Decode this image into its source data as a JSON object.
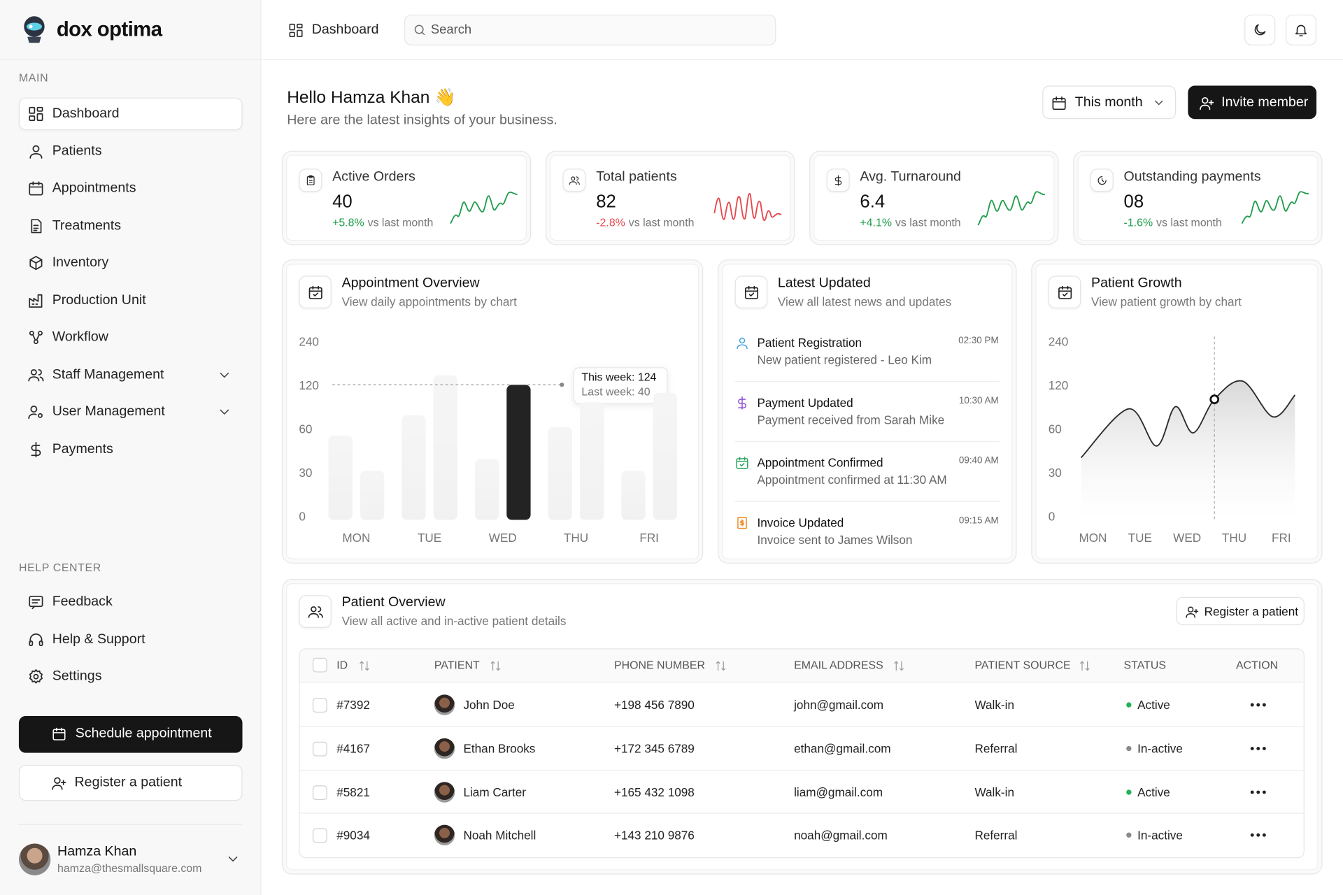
{
  "brand": "dox optima",
  "topbar": {
    "breadcrumb": "Dashboard",
    "search_placeholder": "Search"
  },
  "sidebar": {
    "main_label": "MAIN",
    "main_items": [
      "Dashboard",
      "Patients",
      "Appointments",
      "Treatments",
      "Inventory",
      "Production Unit",
      "Workflow",
      "Staff Management",
      "User Management",
      "Payments"
    ],
    "help_label": "HELP CENTER",
    "help_items": [
      "Feedback",
      "Help & Support",
      "Settings"
    ],
    "schedule_button": "Schedule appointment",
    "register_button": "Register a patient",
    "user": {
      "name": "Hamza Khan",
      "email": "hamza@thesmallsquare.com"
    }
  },
  "header": {
    "greeting": "Hello Hamza Khan 👋",
    "subtitle": "Here are the latest insights of your business.",
    "period": "This month",
    "invite": "Invite member"
  },
  "stats": [
    {
      "label": "Active Orders",
      "value": "40",
      "change": "+5.8%",
      "note": "vs last month",
      "color": "#1f9d4c"
    },
    {
      "label": "Total patients",
      "value": "82",
      "change": "-2.8%",
      "note": "vs last month",
      "color": "#e5484d"
    },
    {
      "label": "Avg. Turnaround",
      "value": "6.4",
      "change": "+4.1%",
      "note": "vs last month",
      "color": "#1f9d4c"
    },
    {
      "label": "Outstanding payments",
      "value": "08",
      "change": "-1.6%",
      "note": "vs last month",
      "color": "#1f9d4c"
    }
  ],
  "appointment_overview": {
    "title": "Appointment Overview",
    "subtitle": "View daily appointments by chart",
    "chart": {
      "type": "bar",
      "categories": [
        "MON",
        "TUE",
        "WED",
        "THU",
        "FRI"
      ],
      "series": [
        {
          "color": "#ececec",
          "values": [
            56,
            80,
            40,
            64,
            32
          ]
        },
        {
          "color": "#ececec",
          "values": [
            32,
            150,
            124,
            98,
            111
          ]
        }
      ],
      "highlight": {
        "series": 1,
        "index": 2,
        "color": "#232323"
      },
      "tooltip": [
        "This week: 124",
        "Last week: 40"
      ],
      "ylim": [
        0,
        240
      ],
      "yticks": [
        0,
        30,
        60,
        120,
        240
      ]
    }
  },
  "latest_updated": {
    "title": "Latest Updated",
    "subtitle": "View all latest news and updates",
    "items": [
      {
        "title": "Patient Registration",
        "description": "New patient registered - Leo Kim",
        "time": "02:30 PM",
        "color": "#3aa0e0"
      },
      {
        "title": "Payment Updated",
        "description": "Payment received from Sarah Mike",
        "time": "10:30 AM",
        "color": "#8b4fd8"
      },
      {
        "title": "Appointment Confirmed",
        "description": "Appointment confirmed at 11:30 AM",
        "time": "09:40 AM",
        "color": "#22a35a"
      },
      {
        "title": "Invoice Updated",
        "description": "Invoice sent to James Wilson",
        "time": "09:15 AM",
        "color": "#f08a24"
      }
    ]
  },
  "patient_growth": {
    "title": "Patient Growth",
    "subtitle": "View patient growth by chart",
    "chart": {
      "type": "line",
      "categories": [
        "MON",
        "TUE",
        "WED",
        "THU",
        "FRI"
      ],
      "x": [
        -0.25,
        0.76,
        1.35,
        1.75,
        2.13,
        2.58,
        3.18,
        3.82,
        4.29
      ],
      "values": [
        41,
        89,
        49,
        92,
        58,
        102,
        134,
        78,
        108
      ],
      "marker": 5,
      "color": "#2a2a2a",
      "ylim": [
        0,
        240
      ],
      "yticks": [
        0,
        30,
        60,
        120,
        240
      ]
    }
  },
  "patient_overview": {
    "title": "Patient Overview",
    "subtitle": "View all active and in-active patient details",
    "register_button": "Register a patient",
    "table": {
      "columns": [
        "ID",
        "PATIENT",
        "PHONE NUMBER",
        "EMAIL ADDRESS",
        "PATIENT SOURCE",
        "STATUS",
        "ACTION"
      ],
      "rows": [
        [
          "#7392",
          "John Doe",
          "+198 456 7890",
          "john@gmail.com",
          "Walk-in",
          "Active"
        ],
        [
          "#4167",
          "Ethan Brooks",
          "+172 345 6789",
          "ethan@gmail.com",
          "Referral",
          "In-active"
        ],
        [
          "#5821",
          "Liam Carter",
          "+165 432 1098",
          "liam@gmail.com",
          "Walk-in",
          "Active"
        ],
        [
          "#9034",
          "Noah Mitchell",
          "+143 210 9876",
          "noah@gmail.com",
          "Referral",
          "In-active"
        ]
      ],
      "status_colors": [
        "#22b357",
        "#8a8a8a",
        "#22b357",
        "#8a8a8a"
      ]
    }
  }
}
